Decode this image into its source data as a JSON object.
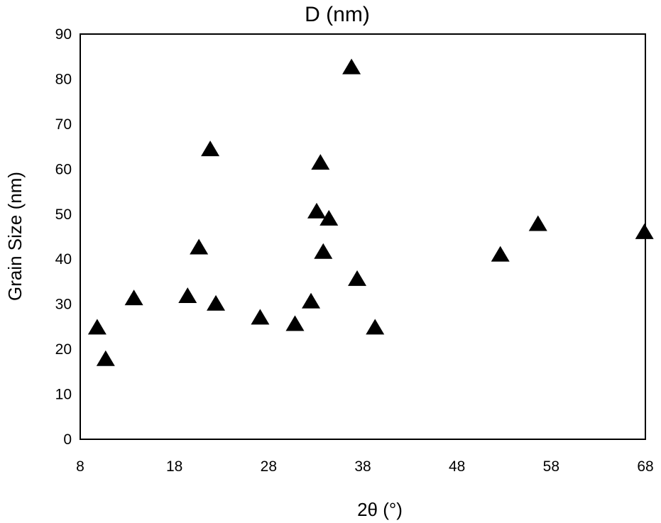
{
  "chart_data": {
    "type": "scatter",
    "title": "D (nm)",
    "xlabel": "2θ (°)",
    "ylabel": "Grain Size (nm)",
    "xlim": [
      8,
      68
    ],
    "ylim": [
      0,
      90
    ],
    "x_ticks": [
      "8",
      "18",
      "28",
      "38",
      "48",
      "58",
      "68"
    ],
    "y_ticks": [
      "0",
      "10",
      "20",
      "30",
      "40",
      "50",
      "60",
      "70",
      "80",
      "90"
    ],
    "grid": false,
    "legend": "none",
    "marker": "triangle",
    "marker_color": "#000000",
    "points": [
      {
        "x": 9.8,
        "y": 25
      },
      {
        "x": 10.7,
        "y": 18
      },
      {
        "x": 13.7,
        "y": 31.5
      },
      {
        "x": 19.4,
        "y": 32
      },
      {
        "x": 20.6,
        "y": 42.8
      },
      {
        "x": 21.8,
        "y": 64.6
      },
      {
        "x": 22.4,
        "y": 30.3
      },
      {
        "x": 27.1,
        "y": 27.2
      },
      {
        "x": 30.8,
        "y": 25.8
      },
      {
        "x": 32.5,
        "y": 30.8
      },
      {
        "x": 33.1,
        "y": 50.8
      },
      {
        "x": 33.5,
        "y": 61.6
      },
      {
        "x": 33.8,
        "y": 41.8
      },
      {
        "x": 34.4,
        "y": 49.2
      },
      {
        "x": 36.8,
        "y": 82.8
      },
      {
        "x": 37.4,
        "y": 35.8
      },
      {
        "x": 39.3,
        "y": 25
      },
      {
        "x": 52.6,
        "y": 41.2
      },
      {
        "x": 56.6,
        "y": 48
      },
      {
        "x": 67.9,
        "y": 46.2
      }
    ]
  }
}
